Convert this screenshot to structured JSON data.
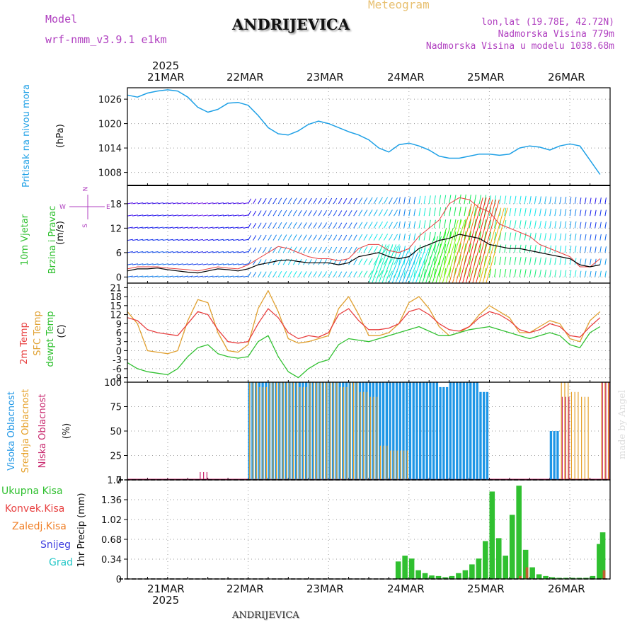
{
  "header": {
    "model_label": "Model",
    "model_name": "wrf-nmm_v3.9.1  e1km",
    "title": "ANDRIJEVICA",
    "subtitle": "Meteogram",
    "coords": "lon,lat (19.78E, 42.72N)",
    "elevation": "Nadmorska Visina 779m",
    "model_elevation": "Nadmorska Visina u modelu 1038.68m",
    "footer_title": "ANDRIJEVICA",
    "watermark": "made by Angel"
  },
  "time_axis": {
    "top_year": "2025",
    "bottom_year": "2025",
    "days": [
      "21MAR",
      "22MAR",
      "23MAR",
      "24MAR",
      "25MAR",
      "26MAR"
    ]
  },
  "colors": {
    "pressure": "#1ea0e6",
    "temp2m": "#e84040",
    "sfc": "#e0a030",
    "dewpt": "#30c030",
    "high_cloud": "#1e96e6",
    "mid_cloud": "#e6a028",
    "low_cloud": "#c8286e",
    "total_precip": "#30c030",
    "conv_precip": "#e84040",
    "frozen": "#f08028",
    "snow": "#4040e0",
    "hail": "#28c8c8",
    "wind_legend": "#b040c0",
    "black_line": "#000000"
  },
  "chart_data": [
    {
      "type": "line",
      "name": "pressure",
      "ylabel_lines": [
        "Pritisak na nivou mora",
        "(hPa)"
      ],
      "ylim": [
        1004.8,
        1028.8
      ],
      "yticks": [
        "1026",
        "1020",
        "1014",
        "1008"
      ],
      "ytick_values": [
        1026,
        1020,
        1014,
        1008
      ],
      "x_hours": [
        0,
        3,
        6,
        9,
        12,
        15,
        18,
        21,
        24,
        27,
        30,
        33,
        36,
        39,
        42,
        45,
        48,
        51,
        54,
        57,
        60,
        63,
        66,
        69,
        72,
        75,
        78,
        81,
        84,
        87,
        90,
        93,
        96,
        99,
        102,
        105,
        108,
        111,
        114,
        117,
        120,
        123,
        126,
        129,
        132,
        135,
        138,
        141
      ],
      "series": [
        {
          "values": [
            1027.0,
            1026.5,
            1027.5,
            1028.0,
            1028.3,
            1028.0,
            1026.5,
            1024.0,
            1022.8,
            1023.5,
            1025.0,
            1025.2,
            1024.5,
            1022.0,
            1019.0,
            1017.5,
            1017.2,
            1018.2,
            1019.8,
            1020.6,
            1020.0,
            1019.0,
            1018.0,
            1017.2,
            1016.0,
            1014.0,
            1013.0,
            1014.8,
            1015.2,
            1014.5,
            1013.5,
            1012.0,
            1011.5,
            1011.5,
            1012.0,
            1012.5,
            1012.5,
            1012.2,
            1012.5,
            1014.0,
            1014.5,
            1014.2,
            1013.5,
            1014.5,
            1015.0,
            1014.5,
            1011.0,
            1007.5
          ]
        }
      ]
    },
    {
      "type": "line",
      "name": "wind",
      "ylabel_lines": [
        "10m Vjetar",
        "Brzina i Pravac",
        "(m/s)"
      ],
      "compass": {
        "north": "N",
        "south": "S",
        "west": "W",
        "east": "E"
      },
      "ylim": [
        -1.5,
        22.5
      ],
      "yticks": [
        "18",
        "12",
        "6",
        "0"
      ],
      "ytick_values": [
        18,
        12,
        6,
        0
      ],
      "x_hours": [
        0,
        3,
        6,
        9,
        12,
        15,
        18,
        21,
        24,
        27,
        30,
        33,
        36,
        39,
        42,
        45,
        48,
        51,
        54,
        57,
        60,
        63,
        66,
        69,
        72,
        75,
        78,
        81,
        84,
        87,
        90,
        93,
        96,
        99,
        102,
        105,
        108,
        111,
        114,
        117,
        120,
        123,
        126,
        129,
        132,
        135,
        138,
        141
      ],
      "series": [
        {
          "name": "speed",
          "values": [
            1.5,
            2.0,
            2.0,
            2.2,
            1.8,
            1.5,
            1.2,
            1.0,
            1.5,
            2.0,
            1.8,
            1.5,
            2.0,
            3.0,
            3.5,
            4.0,
            4.2,
            3.8,
            3.5,
            3.5,
            3.5,
            3.0,
            3.5,
            5.0,
            5.5,
            6.0,
            5.0,
            4.5,
            5.0,
            7.0,
            8.0,
            9.0,
            9.5,
            10.5,
            10.0,
            9.5,
            8.0,
            7.5,
            7.0,
            7.0,
            6.5,
            6.0,
            5.5,
            5.0,
            4.5,
            3.0,
            2.5,
            3.0
          ]
        },
        {
          "name": "gust",
          "values": [
            2.0,
            2.5,
            2.5,
            2.5,
            2.2,
            2.0,
            1.8,
            1.5,
            2.0,
            2.5,
            2.2,
            2.0,
            3.0,
            4.5,
            6.0,
            7.5,
            7.0,
            6.0,
            5.0,
            4.5,
            4.5,
            4.0,
            4.5,
            7.0,
            8.0,
            8.0,
            6.5,
            6.0,
            7.0,
            10.0,
            12.0,
            14.0,
            18.0,
            19.5,
            19.0,
            17.0,
            16.0,
            13.0,
            12.0,
            11.0,
            10.0,
            8.0,
            7.0,
            6.0,
            5.0,
            2.5,
            2.5,
            4.5
          ]
        }
      ]
    },
    {
      "type": "line",
      "name": "temperature",
      "ylabel_lines": [
        "2m Temp",
        "SFC Temp",
        "dewpt Temp",
        "(C)"
      ],
      "ylim": [
        -10.5,
        22.5
      ],
      "yticks": [
        "21",
        "18",
        "15",
        "12",
        "9",
        "6",
        "3",
        "0",
        "-3",
        "-6",
        "-9"
      ],
      "ytick_values": [
        21,
        18,
        15,
        12,
        9,
        6,
        3,
        0,
        -3,
        -6,
        -9
      ],
      "x_hours": [
        0,
        3,
        6,
        9,
        12,
        15,
        18,
        21,
        24,
        27,
        30,
        33,
        36,
        39,
        42,
        45,
        48,
        51,
        54,
        57,
        60,
        63,
        66,
        69,
        72,
        75,
        78,
        81,
        84,
        87,
        90,
        93,
        96,
        99,
        102,
        105,
        108,
        111,
        114,
        117,
        120,
        123,
        126,
        129,
        132,
        135,
        138,
        141
      ],
      "series": [
        {
          "name": "2m Temp",
          "values": [
            11,
            10,
            7,
            6,
            5.5,
            5,
            9,
            13,
            12,
            7,
            3,
            2.5,
            3,
            9,
            14,
            11,
            6,
            4,
            5,
            4.5,
            6,
            12,
            14,
            10,
            7,
            7,
            7.5,
            9,
            13,
            14,
            12,
            9,
            7,
            6.5,
            8,
            11,
            13,
            12,
            10,
            7,
            6,
            7,
            9,
            8,
            5,
            4.5,
            8,
            11
          ]
        },
        {
          "name": "SFC Temp",
          "values": [
            13,
            9,
            0,
            -0.5,
            -1,
            0,
            10,
            17,
            16,
            6,
            0,
            -0.5,
            2,
            14,
            20,
            13,
            4,
            2.5,
            3,
            4,
            5,
            14,
            18,
            12,
            5,
            5,
            6,
            9,
            16,
            18,
            14,
            8,
            5,
            6,
            8,
            12,
            15,
            13,
            11,
            6,
            6,
            8,
            10,
            9,
            4,
            3,
            10,
            13
          ]
        },
        {
          "name": "dewpt Temp",
          "values": [
            -4,
            -6,
            -7,
            -7.5,
            -8,
            -6,
            -2,
            1,
            2,
            -1,
            -2,
            -2.5,
            -2,
            3,
            5,
            -2,
            -7,
            -9,
            -6,
            -4,
            -3,
            2,
            4,
            3.5,
            3,
            4,
            5,
            6,
            7,
            8,
            6.5,
            5,
            5,
            6,
            7,
            7.5,
            8,
            7,
            6,
            5,
            4,
            5,
            6,
            5,
            2,
            1,
            6,
            8
          ]
        }
      ]
    },
    {
      "type": "bar",
      "name": "cloud",
      "ylabel_lines": [
        "Visoka Oblacnost",
        "Srednja Oblacnost",
        "Niska Oblacnost",
        "(%)"
      ],
      "ylim": [
        0,
        100
      ],
      "yticks": [
        "100",
        "75",
        "50",
        "25",
        "0"
      ],
      "ytick_values": [
        100,
        75,
        50,
        25,
        0
      ],
      "x_hours": [
        0,
        3,
        6,
        9,
        12,
        15,
        18,
        21,
        24,
        27,
        30,
        33,
        36,
        39,
        42,
        45,
        48,
        51,
        54,
        57,
        60,
        63,
        66,
        69,
        72,
        75,
        78,
        81,
        84,
        87,
        90,
        93,
        96,
        99,
        102,
        105,
        108,
        111,
        114,
        117,
        120,
        123,
        126,
        129,
        132,
        135,
        138,
        141
      ],
      "series": [
        {
          "name": "Visoka Oblacnost",
          "values": [
            0,
            0,
            0,
            0,
            0,
            0,
            0,
            0,
            0,
            0,
            0,
            0,
            100,
            100,
            100,
            100,
            100,
            100,
            100,
            100,
            100,
            100,
            100,
            100,
            100,
            100,
            100,
            100,
            100,
            100,
            100,
            95,
            100,
            100,
            100,
            90,
            0,
            0,
            0,
            0,
            0,
            0,
            50,
            0,
            0,
            0,
            0,
            0
          ]
        },
        {
          "name": "Srednja Oblacnost",
          "values": [
            0,
            0,
            0,
            0,
            0,
            0,
            0,
            0,
            0,
            0,
            0,
            0,
            100,
            95,
            100,
            100,
            100,
            95,
            100,
            100,
            100,
            95,
            100,
            90,
            85,
            35,
            30,
            30,
            0,
            0,
            0,
            0,
            0,
            0,
            0,
            0,
            0,
            0,
            0,
            0,
            0,
            0,
            0,
            100,
            90,
            85,
            0,
            100
          ]
        },
        {
          "name": "Niska Oblacnost",
          "values": [
            0,
            0,
            0,
            0,
            0,
            0,
            0,
            8,
            0,
            0,
            0,
            0,
            0,
            0,
            0,
            0,
            0,
            0,
            0,
            0,
            0,
            0,
            0,
            0,
            0,
            0,
            0,
            0,
            0,
            0,
            0,
            0,
            0,
            0,
            0,
            0,
            0,
            0,
            0,
            0,
            0,
            0,
            0,
            85,
            0,
            0,
            0,
            100
          ]
        }
      ]
    },
    {
      "type": "bar",
      "name": "precip",
      "ylabel_lines": [
        "1hr Precip (mm)"
      ],
      "legend": [
        "Ukupna Kisa",
        "Konvek.Kisa",
        "Zaledj.Kisa",
        "Snijeg",
        "Grad"
      ],
      "ylim": [
        0,
        1.7
      ],
      "yticks": [
        "1.7",
        "1.36",
        "1.02",
        "0.68",
        "0.34",
        "0"
      ],
      "ytick_values": [
        1.7,
        1.36,
        1.02,
        0.68,
        0.34,
        0
      ],
      "x_hours": [
        80,
        82,
        84,
        86,
        88,
        90,
        92,
        94,
        96,
        98,
        100,
        102,
        104,
        106,
        108,
        110,
        112,
        114,
        116,
        118,
        120,
        122,
        124,
        126,
        128,
        130,
        132,
        134,
        136,
        138,
        140,
        141
      ],
      "series": [
        {
          "name": "Ukupna Kisa",
          "values": [
            0.3,
            0.4,
            0.35,
            0.15,
            0.1,
            0.06,
            0.05,
            0.03,
            0.05,
            0.1,
            0.15,
            0.25,
            0.35,
            0.65,
            1.5,
            0.7,
            0.4,
            1.1,
            1.6,
            0.5,
            0.2,
            0.08,
            0.05,
            0.03,
            0.02,
            0.02,
            0.02,
            0.02,
            0.02,
            0.05,
            0.6,
            0.8
          ]
        },
        {
          "name": "Konvek.Kisa",
          "values": [
            0,
            0,
            0,
            0,
            0,
            0,
            0,
            0,
            0,
            0,
            0,
            0,
            0,
            0,
            0,
            0,
            0,
            0,
            0.05,
            0.2,
            0,
            0,
            0,
            0,
            0,
            0,
            0,
            0,
            0,
            0,
            0,
            0.15
          ]
        }
      ]
    }
  ]
}
